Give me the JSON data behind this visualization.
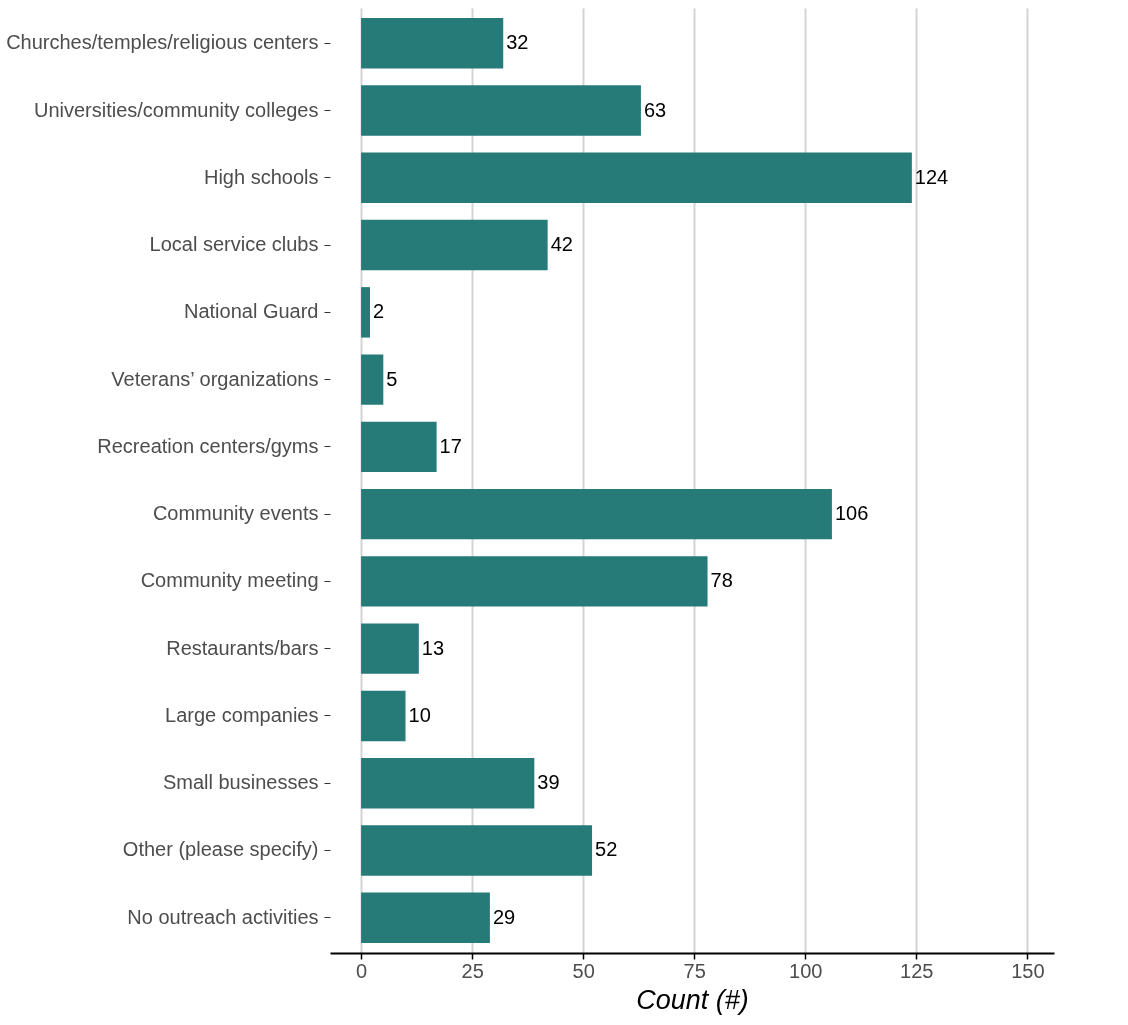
{
  "chart_data": {
    "type": "bar",
    "orientation": "horizontal",
    "xlabel": "Count (#)",
    "categories": [
      "Churches/temples/religious centers",
      "Universities/community colleges",
      "High schools",
      "Local service clubs",
      "National Guard",
      "Veterans’ organizations",
      "Recreation centers/gyms",
      "Community events",
      "Community meeting",
      "Restaurants/bars",
      "Large companies",
      "Small businesses",
      "Other (please specify)",
      "No outreach activities"
    ],
    "values": [
      32,
      63,
      124,
      42,
      2,
      5,
      17,
      106,
      78,
      13,
      10,
      39,
      52,
      29
    ],
    "color": "#267a77",
    "xlim": [
      -7,
      156
    ],
    "xticks": [
      0,
      25,
      50,
      75,
      100,
      125,
      150
    ],
    "grid": "x",
    "data_labels": true
  }
}
